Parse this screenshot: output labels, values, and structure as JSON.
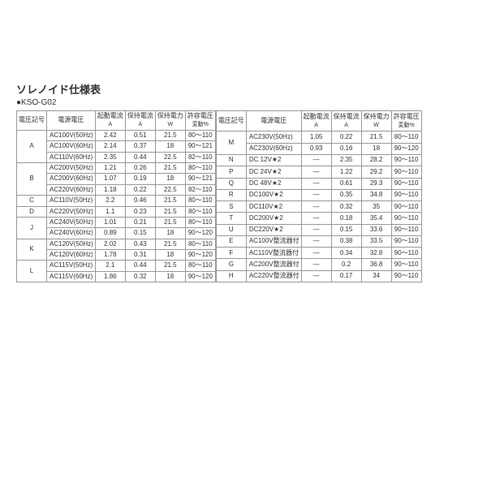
{
  "title": "ソレノイド仕様表",
  "subtitle": "●KSO-G02",
  "headers": [
    "電圧記号",
    "電源電圧",
    "起動電流\nA",
    "保持電流\nA",
    "保持電力\nW",
    "許容電圧\n変動%"
  ],
  "left": [
    {
      "sym": "A",
      "span": 3,
      "rows": [
        [
          "AC100V(50Hz)",
          "2.42",
          "0.51",
          "21.5",
          "80～110"
        ],
        [
          "AC100V(60Hz)",
          "2.14",
          "0.37",
          "18",
          "90～121"
        ],
        [
          "AC110V(60Hz)",
          "2.35",
          "0.44",
          "22.5",
          "82～110"
        ]
      ]
    },
    {
      "sym": "B",
      "span": 3,
      "rows": [
        [
          "AC200V(50Hz)",
          "1.21",
          "0.26",
          "21.5",
          "80～110"
        ],
        [
          "AC200V(60Hz)",
          "1.07",
          "0.19",
          "18",
          "90～121"
        ],
        [
          "AC220V(60Hz)",
          "1.18",
          "0.22",
          "22.5",
          "82～110"
        ]
      ]
    },
    {
      "sym": "C",
      "span": 1,
      "rows": [
        [
          "AC110V(50Hz)",
          "2.2",
          "0.46",
          "21.5",
          "80～110"
        ]
      ]
    },
    {
      "sym": "D",
      "span": 1,
      "rows": [
        [
          "AC220V(50Hz)",
          "1.1",
          "0.23",
          "21.5",
          "80～110"
        ]
      ]
    },
    {
      "sym": "J",
      "span": 2,
      "rows": [
        [
          "AC240V(50Hz)",
          "1.01",
          "0.21",
          "21.5",
          "80～110"
        ],
        [
          "AC240V(60Hz)",
          "0.89",
          "0.15",
          "18",
          "90～120"
        ]
      ]
    },
    {
      "sym": "K",
      "span": 2,
      "rows": [
        [
          "AC120V(50Hz)",
          "2.02",
          "0.43",
          "21.5",
          "80～110"
        ],
        [
          "AC120V(60Hz)",
          "1.78",
          "0.31",
          "18",
          "90～120"
        ]
      ]
    },
    {
      "sym": "L",
      "span": 2,
      "rows": [
        [
          "AC115V(50Hz)",
          "2.1",
          "0.44",
          "21.5",
          "80～110"
        ],
        [
          "AC115V(60Hz)",
          "1.86",
          "0.32",
          "18",
          "90～120"
        ]
      ]
    }
  ],
  "right": [
    {
      "sym": "M",
      "span": 2,
      "rows": [
        [
          "AC230V(50Hz)",
          "1.05",
          "0.22",
          "21.5",
          "80～110"
        ],
        [
          "AC230V(60Hz)",
          "0.93",
          "0.16",
          "18",
          "90～120"
        ]
      ]
    },
    {
      "sym": "N",
      "span": 1,
      "rows": [
        [
          "DC 12V★2",
          "—",
          "2.35",
          "28.2",
          "90～110"
        ]
      ]
    },
    {
      "sym": "P",
      "span": 1,
      "rows": [
        [
          "DC 24V★2",
          "—",
          "1.22",
          "29.2",
          "90～110"
        ]
      ]
    },
    {
      "sym": "Q",
      "span": 1,
      "rows": [
        [
          "DC 48V★2",
          "—",
          "0.61",
          "29.3",
          "90～110"
        ]
      ]
    },
    {
      "sym": "R",
      "span": 1,
      "rows": [
        [
          "DC100V★2",
          "—",
          "0.35",
          "34.8",
          "90～110"
        ]
      ]
    },
    {
      "sym": "S",
      "span": 1,
      "rows": [
        [
          "DC110V★2",
          "—",
          "0.32",
          "35",
          "90～110"
        ]
      ]
    },
    {
      "sym": "T",
      "span": 1,
      "rows": [
        [
          "DC200V★2",
          "—",
          "0.18",
          "35.4",
          "90～110"
        ]
      ]
    },
    {
      "sym": "U",
      "span": 1,
      "rows": [
        [
          "DC220V★2",
          "—",
          "0.15",
          "33.6",
          "90～110"
        ]
      ]
    },
    {
      "sym": "E",
      "span": 1,
      "rows": [
        [
          "AC100V整流器付",
          "—",
          "0.38",
          "33.5",
          "90～110"
        ]
      ]
    },
    {
      "sym": "F",
      "span": 1,
      "rows": [
        [
          "AC110V整流器付",
          "—",
          "0.34",
          "32.8",
          "90～110"
        ]
      ]
    },
    {
      "sym": "G",
      "span": 1,
      "rows": [
        [
          "AC200V整流器付",
          "—",
          "0.2",
          "36.8",
          "90～110"
        ]
      ]
    },
    {
      "sym": "H",
      "span": 1,
      "rows": [
        [
          "AC220V整流器付",
          "—",
          "0.17",
          "34",
          "90～110"
        ]
      ]
    }
  ]
}
